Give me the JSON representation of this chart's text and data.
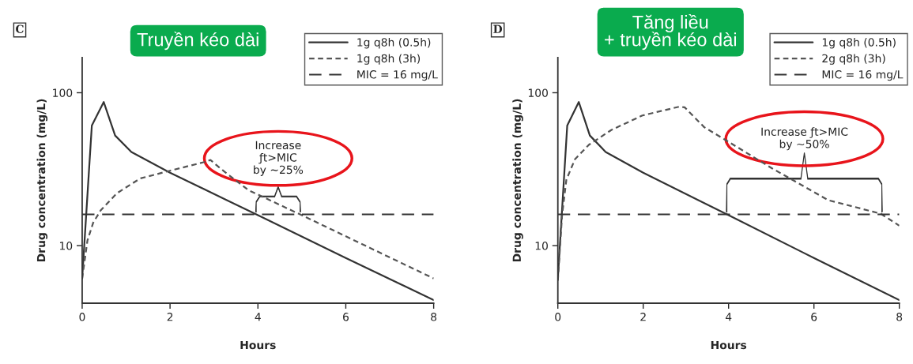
{
  "chart_data": [
    {
      "type": "line",
      "title": "Truyền kéo dài",
      "xlabel": "Hours",
      "ylabel": "Drug concentration (mg/L)",
      "log": "y",
      "grid": false,
      "legend": "top right",
      "xlim": [
        0,
        8
      ],
      "xticks": [
        0,
        2,
        4,
        6,
        8
      ],
      "ylim": [
        4.2,
        170
      ],
      "yticks": [
        10,
        100
      ],
      "series": [
        {
          "name": "1g q8h (0.5h)",
          "color": "#333333",
          "line_style": "solid",
          "x": [
            0,
            0.22,
            0.49,
            0.75,
            1.12,
            2,
            4,
            6,
            8
          ],
          "values": [
            6.1,
            61,
            87,
            52.5,
            41,
            30,
            15.8,
            8.3,
            4.4
          ]
        },
        {
          "name": "1g q8h (3h)",
          "color": "#555555",
          "line_style": "dashed",
          "x": [
            0,
            0.12,
            0.25,
            0.42,
            0.79,
            1.32,
            1.98,
            2.78,
            2.92,
            3.18,
            3.78,
            5,
            8
          ],
          "values": [
            6.1,
            10.8,
            14.1,
            17,
            22,
            27.5,
            30.8,
            35.2,
            36.3,
            31.4,
            23.1,
            15.8,
            6.1
          ]
        }
      ],
      "ref_lines": [
        {
          "axis": "y",
          "value": 16,
          "label": "MIC = 16 mg/L",
          "color": "#333333",
          "line_style": "dashed"
        }
      ],
      "annotations": [
        "C",
        "Increase\nƒt>MIC\nby ~25%"
      ]
    },
    {
      "type": "line",
      "title": "Tăng liều\n+ truyền kéo dài",
      "xlabel": "Hours",
      "ylabel": "Drug concentration (mg/L)",
      "log": "y",
      "grid": false,
      "legend": "top right",
      "xlim": [
        0,
        8
      ],
      "xticks": [
        0,
        2,
        4,
        6,
        8
      ],
      "ylim": [
        4.2,
        170
      ],
      "yticks": [
        10,
        100
      ],
      "series": [
        {
          "name": "1g q8h (0.5h)",
          "color": "#333333",
          "line_style": "solid",
          "x": [
            0,
            0.22,
            0.49,
            0.75,
            1.12,
            2,
            4,
            6,
            8
          ],
          "values": [
            6.1,
            61,
            87,
            52.5,
            41,
            30,
            15.8,
            8.3,
            4.4
          ]
        },
        {
          "name": "2g q8h (3h)",
          "color": "#555555",
          "line_style": "dashed",
          "x": [
            0,
            0.1,
            0.2,
            0.4,
            0.73,
            1.25,
            1.98,
            2.84,
            2.97,
            3.43,
            3.83,
            5.02,
            6.34,
            7.56,
            8
          ],
          "values": [
            5.9,
            15.9,
            27,
            36.7,
            45.7,
            57,
            71,
            81,
            80.3,
            59.5,
            51,
            32,
            19.8,
            16.2,
            13.5
          ]
        }
      ],
      "ref_lines": [
        {
          "axis": "y",
          "value": 16,
          "label": "MIC = 16 mg/L",
          "color": "#333333",
          "line_style": "dashed"
        }
      ],
      "annotations": [
        "D",
        "Increase ƒt>MIC\nby ~50%"
      ]
    }
  ]
}
